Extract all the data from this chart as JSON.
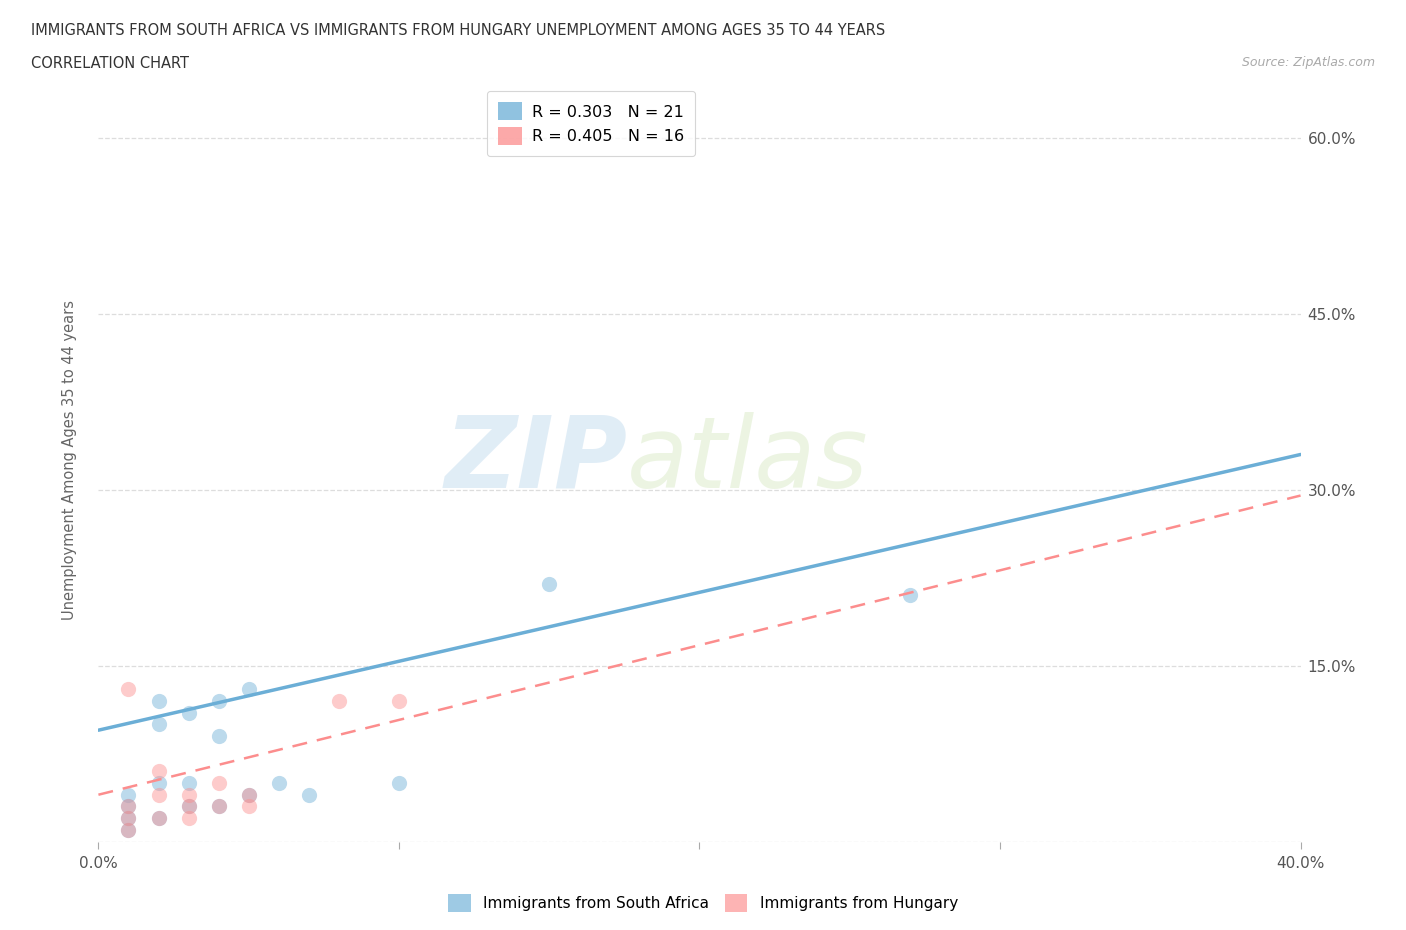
{
  "title_line1": "IMMIGRANTS FROM SOUTH AFRICA VS IMMIGRANTS FROM HUNGARY UNEMPLOYMENT AMONG AGES 35 TO 44 YEARS",
  "title_line2": "CORRELATION CHART",
  "source_text": "Source: ZipAtlas.com",
  "ylabel": "Unemployment Among Ages 35 to 44 years",
  "xlim": [
    0.0,
    0.4
  ],
  "ylim": [
    0.0,
    0.65
  ],
  "south_africa_R": 0.303,
  "south_africa_N": 21,
  "hungary_R": 0.405,
  "hungary_N": 16,
  "south_africa_color": "#6baed6",
  "hungary_color": "#fc8d8d",
  "south_africa_scatter_x": [
    0.01,
    0.01,
    0.01,
    0.01,
    0.02,
    0.02,
    0.02,
    0.02,
    0.03,
    0.03,
    0.03,
    0.04,
    0.04,
    0.04,
    0.05,
    0.05,
    0.06,
    0.07,
    0.1,
    0.15,
    0.27
  ],
  "south_africa_scatter_y": [
    0.01,
    0.02,
    0.03,
    0.04,
    0.02,
    0.05,
    0.1,
    0.12,
    0.03,
    0.05,
    0.11,
    0.03,
    0.09,
    0.12,
    0.04,
    0.13,
    0.05,
    0.04,
    0.05,
    0.22,
    0.21
  ],
  "hungary_scatter_x": [
    0.01,
    0.01,
    0.01,
    0.01,
    0.02,
    0.02,
    0.02,
    0.03,
    0.03,
    0.03,
    0.04,
    0.04,
    0.05,
    0.05,
    0.08,
    0.1
  ],
  "hungary_scatter_y": [
    0.01,
    0.02,
    0.03,
    0.13,
    0.02,
    0.04,
    0.06,
    0.02,
    0.03,
    0.04,
    0.03,
    0.05,
    0.03,
    0.04,
    0.12,
    0.12
  ],
  "south_africa_trend_x": [
    0.0,
    0.4
  ],
  "south_africa_trend_y": [
    0.095,
    0.33
  ],
  "hungary_trend_x": [
    0.0,
    0.4
  ],
  "hungary_trend_y": [
    0.04,
    0.295
  ],
  "watermark_zip": "ZIP",
  "watermark_atlas": "atlas",
  "background_color": "#ffffff",
  "grid_color": "#dddddd",
  "scatter_size": 120,
  "scatter_alpha": 0.45,
  "trend_lw_sa": 2.5,
  "trend_lw_hu": 1.8
}
